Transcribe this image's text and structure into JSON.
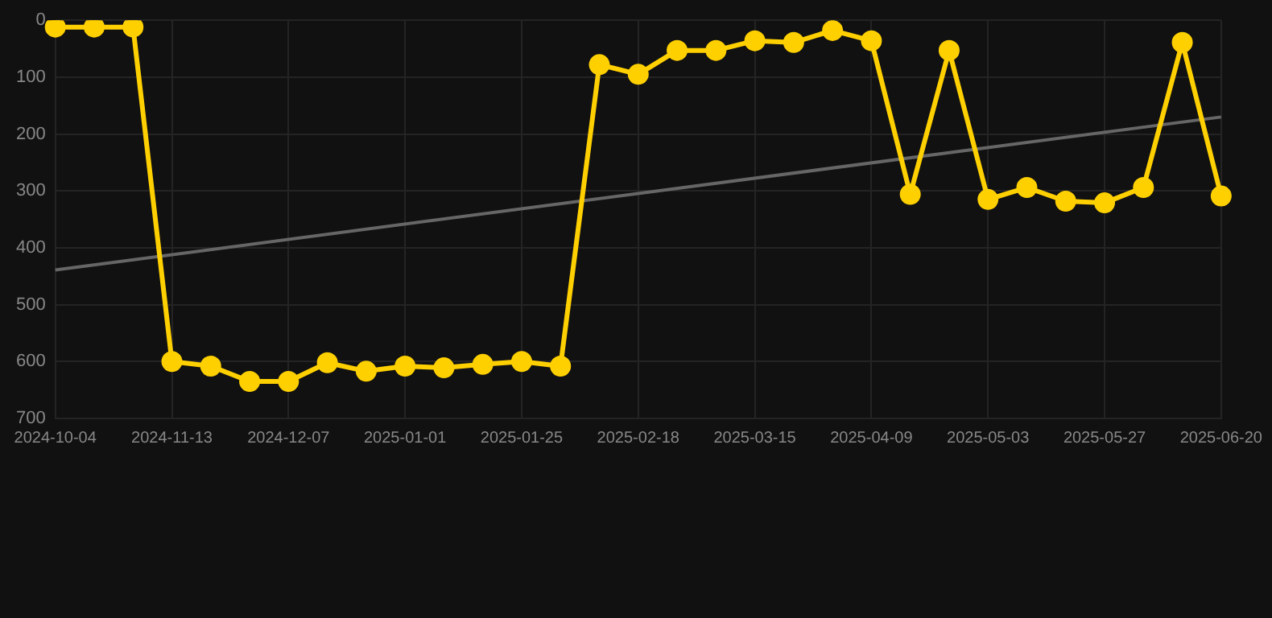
{
  "chart_data": {
    "type": "line",
    "categories": [
      "2024-10-04",
      null,
      null,
      "2024-11-13",
      null,
      null,
      "2024-12-07",
      null,
      null,
      "2025-01-01",
      null,
      null,
      "2025-01-25",
      null,
      null,
      "2025-02-18",
      null,
      null,
      "2025-03-15",
      null,
      null,
      "2025-04-09",
      null,
      null,
      "2025-05-03",
      null,
      null,
      "2025-05-27",
      null,
      null,
      "2025-06-20"
    ],
    "series": [
      {
        "color": "#ffd000",
        "values": [
          12,
          12,
          12,
          600,
          608,
          635,
          635,
          602,
          617,
          608,
          611,
          605,
          600,
          608,
          78,
          95,
          53,
          53,
          36,
          39,
          18,
          36,
          306,
          53,
          315,
          294,
          318,
          321,
          294,
          39,
          309
        ]
      },
      {
        "color": "#666666",
        "marker": "none",
        "values": [
          439,
          null,
          null,
          null,
          null,
          null,
          null,
          null,
          null,
          null,
          null,
          null,
          null,
          null,
          null,
          null,
          null,
          null,
          null,
          null,
          null,
          null,
          null,
          null,
          null,
          null,
          null,
          null,
          null,
          null,
          170
        ]
      }
    ],
    "ylim": [
      700,
      0
    ],
    "yticks": [
      0,
      100,
      200,
      300,
      400,
      500,
      600,
      700
    ],
    "grid": true,
    "legend": false,
    "marker": "circle",
    "line_style": "solid"
  }
}
